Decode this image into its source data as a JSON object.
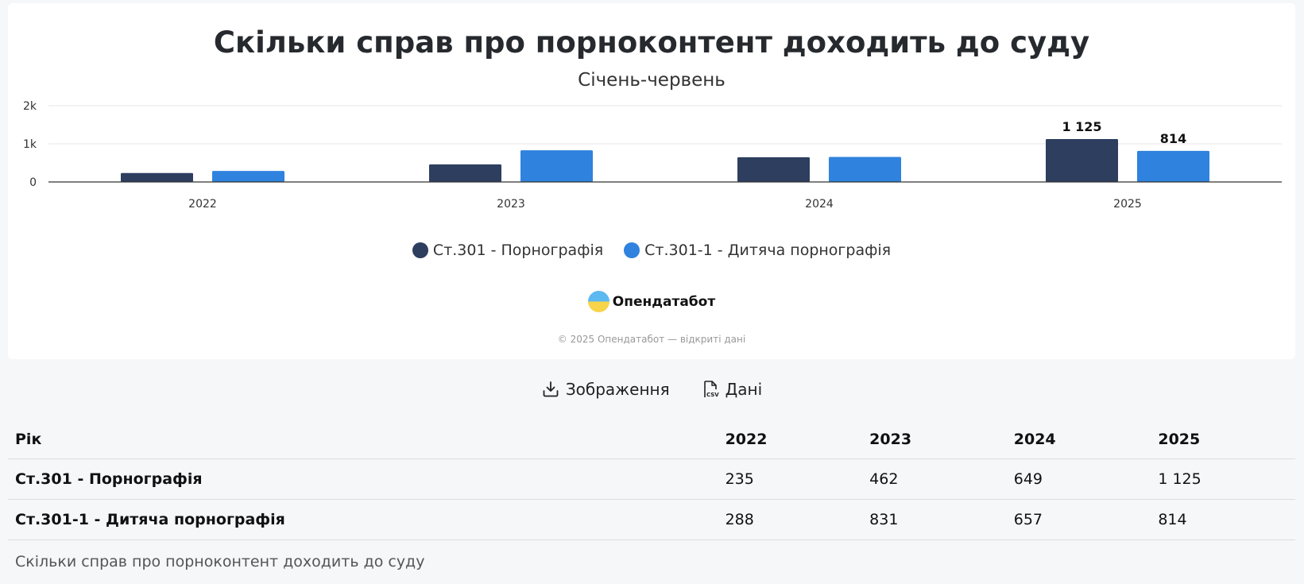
{
  "chart_data": {
    "type": "bar",
    "title": "Скільки справ про порноконтент доходить до суду",
    "subtitle": "Січень-червень",
    "categories": [
      "2022",
      "2023",
      "2024",
      "2025"
    ],
    "series": [
      {
        "name": "Ст.301 - Порнографія",
        "color": "#2d3e5f",
        "values": [
          235,
          462,
          649,
          1125
        ]
      },
      {
        "name": "Ст.301-1 - Дитяча порнографія",
        "color": "#2f82de",
        "values": [
          288,
          831,
          657,
          814
        ]
      }
    ],
    "ylim": [
      0,
      2000
    ],
    "yticks": [
      {
        "value": 0,
        "label": "0"
      },
      {
        "value": 1000,
        "label": "1k"
      },
      {
        "value": 2000,
        "label": "2k"
      }
    ],
    "data_labels": [
      {
        "series": 0,
        "index": 3,
        "text": "1 125"
      },
      {
        "series": 1,
        "index": 3,
        "text": "814"
      }
    ],
    "grid": true,
    "legend": "bottom-center"
  },
  "branding": {
    "logo_text": "Опендатабот",
    "copyright": "© 2025 Опендатабот — відкриті дані"
  },
  "downloads": {
    "image_label": "Зображення",
    "data_label": "Дані"
  },
  "table": {
    "header_label": "Рік",
    "years": [
      "2022",
      "2023",
      "2024",
      "2025"
    ],
    "rows": [
      {
        "label": "Ст.301 - Порнографія",
        "cells": [
          "235",
          "462",
          "649",
          "1 125"
        ]
      },
      {
        "label": "Ст.301-1 - Дитяча порнографія",
        "cells": [
          "288",
          "831",
          "657",
          "814"
        ]
      }
    ],
    "caption": "Скільки справ про порноконтент доходить до суду"
  }
}
